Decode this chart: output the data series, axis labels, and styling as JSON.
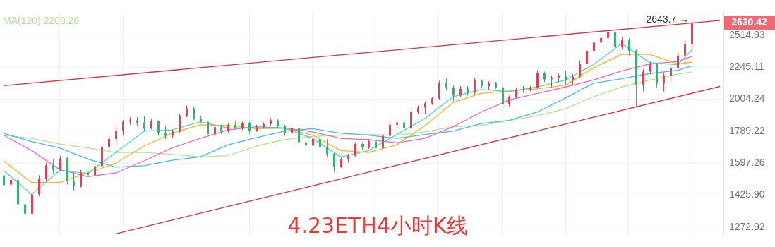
{
  "chart_data": {
    "type": "candlestick",
    "title": "4.23ETH4小时K线",
    "categories": [
      null,
      null,
      null,
      null,
      null,
      null,
      null,
      null,
      null,
      null,
      null,
      null,
      null,
      null,
      null,
      null,
      null,
      null,
      null,
      null,
      null,
      null,
      null,
      null,
      null,
      null,
      null,
      null,
      null,
      null,
      null,
      null,
      null,
      null,
      null,
      null,
      null,
      null,
      null,
      null,
      null,
      null,
      null,
      null,
      null,
      null,
      null,
      null,
      null,
      null,
      null,
      null,
      null,
      null,
      null,
      null,
      null,
      null,
      null,
      null,
      null,
      null,
      null,
      null,
      null,
      null,
      null,
      null,
      null,
      null,
      null,
      null,
      null,
      null,
      null,
      null,
      null,
      null,
      null,
      null,
      null,
      null,
      null,
      null,
      null,
      null,
      null,
      null,
      null,
      null,
      null,
      null,
      null,
      null,
      null,
      null,
      null,
      null,
      null,
      null,
      null,
      null,
      null
    ],
    "ohlc": [
      [
        1529,
        1547,
        1444,
        1477
      ],
      [
        1480,
        1515,
        1445,
        1505
      ],
      [
        1505,
        1510,
        1350,
        1380
      ],
      [
        1380,
        1395,
        1297,
        1335
      ],
      [
        1335,
        1440,
        1330,
        1430
      ],
      [
        1430,
        1530,
        1420,
        1510
      ],
      [
        1510,
        1600,
        1500,
        1585
      ],
      [
        1585,
        1620,
        1540,
        1560
      ],
      [
        1560,
        1640,
        1555,
        1625
      ],
      [
        1625,
        1630,
        1480,
        1500
      ],
      [
        1500,
        1545,
        1450,
        1470
      ],
      [
        1470,
        1560,
        1465,
        1545
      ],
      [
        1545,
        1580,
        1520,
        1530
      ],
      [
        1530,
        1590,
        1525,
        1580
      ],
      [
        1580,
        1700,
        1575,
        1690
      ],
      [
        1690,
        1760,
        1660,
        1740
      ],
      [
        1740,
        1820,
        1700,
        1790
      ],
      [
        1790,
        1860,
        1760,
        1850
      ],
      [
        1850,
        1880,
        1830,
        1860
      ],
      [
        1860,
        1880,
        1820,
        1840
      ],
      [
        1845,
        1885,
        1790,
        1805
      ],
      [
        1805,
        1870,
        1800,
        1855
      ],
      [
        1855,
        1860,
        1760,
        1780
      ],
      [
        1780,
        1820,
        1740,
        1760
      ],
      [
        1760,
        1800,
        1745,
        1790
      ],
      [
        1790,
        1900,
        1780,
        1890
      ],
      [
        1890,
        1960,
        1880,
        1940
      ],
      [
        1940,
        1950,
        1860,
        1870
      ],
      [
        1870,
        1890,
        1840,
        1850
      ],
      [
        1850,
        1860,
        1750,
        1770
      ],
      [
        1770,
        1830,
        1760,
        1815
      ],
      [
        1815,
        1830,
        1770,
        1790
      ],
      [
        1790,
        1840,
        1780,
        1830
      ],
      [
        1830,
        1855,
        1800,
        1810
      ],
      [
        1810,
        1850,
        1795,
        1840
      ],
      [
        1840,
        1850,
        1770,
        1790
      ],
      [
        1790,
        1830,
        1785,
        1815
      ],
      [
        1815,
        1845,
        1810,
        1835
      ],
      [
        1835,
        1875,
        1825,
        1860
      ],
      [
        1860,
        1870,
        1810,
        1820
      ],
      [
        1820,
        1830,
        1760,
        1780
      ],
      [
        1780,
        1820,
        1770,
        1810
      ],
      [
        1810,
        1830,
        1700,
        1720
      ],
      [
        1720,
        1760,
        1680,
        1700
      ],
      [
        1700,
        1750,
        1690,
        1740
      ],
      [
        1740,
        1760,
        1680,
        1690
      ],
      [
        1690,
        1740,
        1630,
        1650
      ],
      [
        1650,
        1655,
        1545,
        1575
      ],
      [
        1575,
        1630,
        1570,
        1620
      ],
      [
        1620,
        1650,
        1600,
        1640
      ],
      [
        1640,
        1720,
        1635,
        1710
      ],
      [
        1710,
        1720,
        1670,
        1690
      ],
      [
        1690,
        1740,
        1680,
        1725
      ],
      [
        1725,
        1730,
        1670,
        1685
      ],
      [
        1685,
        1770,
        1680,
        1760
      ],
      [
        1760,
        1850,
        1750,
        1830
      ],
      [
        1830,
        1860,
        1810,
        1845
      ],
      [
        1845,
        1870,
        1790,
        1810
      ],
      [
        1810,
        1930,
        1800,
        1915
      ],
      [
        1915,
        1960,
        1900,
        1945
      ],
      [
        1945,
        1990,
        1900,
        1975
      ],
      [
        1975,
        2020,
        1965,
        2010
      ],
      [
        2010,
        2140,
        2000,
        2120
      ],
      [
        2120,
        2160,
        2070,
        2090
      ],
      [
        2090,
        2110,
        1990,
        2030
      ],
      [
        2030,
        2100,
        2020,
        2080
      ],
      [
        2080,
        2100,
        2030,
        2050
      ],
      [
        2050,
        2160,
        2040,
        2140
      ],
      [
        2140,
        2150,
        2085,
        2100
      ],
      [
        2100,
        2135,
        2070,
        2120
      ],
      [
        2120,
        2130,
        2080,
        2090
      ],
      [
        2090,
        2095,
        1940,
        1970
      ],
      [
        1970,
        2030,
        1950,
        2020
      ],
      [
        2020,
        2090,
        2010,
        2070
      ],
      [
        2070,
        2100,
        2050,
        2075
      ],
      [
        2075,
        2100,
        2060,
        2090
      ],
      [
        2090,
        2220,
        2080,
        2200
      ],
      [
        2200,
        2210,
        2130,
        2150
      ],
      [
        2150,
        2180,
        2090,
        2160
      ],
      [
        2160,
        2195,
        2130,
        2180
      ],
      [
        2180,
        2220,
        2110,
        2140
      ],
      [
        2140,
        2190,
        2110,
        2170
      ],
      [
        2170,
        2300,
        2160,
        2270
      ],
      [
        2270,
        2400,
        2250,
        2380
      ],
      [
        2380,
        2470,
        2340,
        2450
      ],
      [
        2450,
        2500,
        2420,
        2490
      ],
      [
        2490,
        2560,
        2470,
        2540
      ],
      [
        2540,
        2545,
        2330,
        2410
      ],
      [
        2410,
        2500,
        2390,
        2470
      ],
      [
        2470,
        2490,
        2340,
        2380
      ],
      [
        2380,
        2390,
        1946,
        2110
      ],
      [
        2110,
        2230,
        2060,
        2210
      ],
      [
        2210,
        2290,
        2190,
        2270
      ],
      [
        2270,
        2280,
        2090,
        2120
      ],
      [
        2120,
        2200,
        2060,
        2180
      ],
      [
        2180,
        2260,
        2130,
        2240
      ],
      [
        2240,
        2370,
        2230,
        2340
      ],
      [
        2340,
        2470,
        2250,
        2440
      ],
      [
        2440,
        2643.7,
        2380,
        2630.42
      ],
      null,
      null,
      null,
      null
    ],
    "colors": [
      "#3aae74",
      "#e5404f",
      "#3aae74",
      "#3aae74",
      "#e5404f",
      "#e5404f",
      "#e5404f",
      "#3aae74",
      "#e5404f",
      "#3aae74",
      "#3aae74",
      "#e5404f",
      "#3aae74",
      "#e5404f",
      "#e5404f",
      "#e5404f",
      "#e5404f",
      "#e5404f",
      "#e5404f",
      "#3aae74",
      "#3aae74",
      "#e5404f",
      "#3aae74",
      "#3aae74",
      "#e5404f",
      "#e5404f",
      "#e5404f",
      "#3aae74",
      "#3aae74",
      "#3aae74",
      "#e5404f",
      "#3aae74",
      "#e5404f",
      "#3aae74",
      "#e5404f",
      "#3aae74",
      "#e5404f",
      "#e5404f",
      "#e5404f",
      "#3aae74",
      "#3aae74",
      "#e5404f",
      "#3aae74",
      "#3aae74",
      "#e5404f",
      "#3aae74",
      "#3aae74",
      "#3aae74",
      "#e5404f",
      "#e5404f",
      "#e5404f",
      "#3aae74",
      "#e5404f",
      "#3aae74",
      "#e5404f",
      "#e5404f",
      "#e5404f",
      "#3aae74",
      "#e5404f",
      "#e5404f",
      "#e5404f",
      "#e5404f",
      "#e5404f",
      "#3aae74",
      "#3aae74",
      "#e5404f",
      "#3aae74",
      "#e5404f",
      "#3aae74",
      "#e5404f",
      "#3aae74",
      "#3aae74",
      "#e5404f",
      "#e5404f",
      "#e5404f",
      "#e5404f",
      "#e5404f",
      "#3aae74",
      "#e5404f",
      "#e5404f",
      "#3aae74",
      "#e5404f",
      "#e5404f",
      "#e5404f",
      "#e5404f",
      "#e5404f",
      "#e5404f",
      "#3aae74",
      "#e5404f",
      "#3aae74",
      "#3aae74",
      "#e5404f",
      "#e5404f",
      "#3aae74",
      "#e5404f",
      "#e5404f",
      "#e5404f",
      "#e5404f",
      "#e5404f",
      null,
      null,
      null,
      null
    ],
    "series": [
      {
        "type": "line",
        "color": "#4fd6c0",
        "values": [
          1557,
          null,
          null,
          null,
          1430,
          null,
          null,
          null,
          1557,
          null,
          null,
          null,
          1540,
          null,
          null,
          null,
          1659,
          null,
          null,
          null,
          1789,
          null,
          null,
          null,
          1797,
          null,
          null,
          null,
          1850,
          null,
          null,
          null,
          1809,
          null,
          null,
          null,
          1809,
          null,
          null,
          null,
          1809,
          null,
          null,
          null,
          1744,
          null,
          null,
          null,
          1633,
          null,
          null,
          null,
          1670,
          null,
          null,
          null,
          1768,
          null,
          null,
          null,
          1872,
          null,
          null,
          null,
          2022,
          null,
          null,
          null,
          2074,
          null,
          null,
          null,
          2060,
          null,
          null,
          null,
          2093,
          null,
          null,
          null,
          2145,
          null,
          null,
          null,
          2266,
          null,
          null,
          null,
          2442,
          null,
          null,
          null,
          2281,
          null,
          null,
          null,
          2266,
          null,
          2387,
          null,
          null,
          null,
          null
        ]
      },
      {
        "type": "line",
        "color": "#ffb224",
        "values": [
          1610,
          null,
          null,
          null,
          1491,
          null,
          null,
          null,
          1491,
          null,
          null,
          null,
          1543,
          null,
          null,
          null,
          1597,
          null,
          null,
          null,
          1697,
          null,
          null,
          null,
          1776,
          null,
          null,
          null,
          1830,
          null,
          null,
          null,
          1825,
          null,
          null,
          null,
          1805,
          null,
          null,
          null,
          1809,
          null,
          null,
          null,
          1764,
          null,
          null,
          null,
          1670,
          null,
          null,
          null,
          1659,
          null,
          null,
          null,
          1705,
          null,
          null,
          null,
          1825,
          null,
          null,
          null,
          1981,
          null,
          null,
          null,
          2046,
          null,
          null,
          null,
          2064,
          null,
          null,
          null,
          2079,
          null,
          null,
          null,
          2107,
          null,
          null,
          null,
          2240,
          null,
          null,
          null,
          2349,
          null,
          null,
          null,
          2349,
          null,
          null,
          null,
          2271,
          null,
          2286,
          null,
          null,
          null,
          null
        ]
      },
      {
        "type": "line",
        "color": "#f065c2",
        "values": [
          1764,
          null,
          null,
          null,
          1670,
          null,
          null,
          null,
          1561,
          null,
          null,
          null,
          1522,
          null,
          null,
          null,
          1543,
          null,
          null,
          null,
          1610,
          null,
          null,
          null,
          1686,
          null,
          null,
          null,
          1744,
          null,
          null,
          null,
          1797,
          null,
          null,
          null,
          1817,
          null,
          null,
          null,
          1809,
          null,
          null,
          null,
          1785,
          null,
          null,
          null,
          1744,
          null,
          null,
          null,
          1736,
          null,
          null,
          null,
          1717,
          null,
          null,
          null,
          1744,
          null,
          null,
          null,
          1817,
          null,
          null,
          null,
          1915,
          null,
          null,
          null,
          1999,
          null,
          null,
          null,
          2046,
          null,
          null,
          null,
          2093,
          null,
          null,
          null,
          2145,
          null,
          null,
          null,
          2215,
          null,
          null,
          null,
          2271,
          null,
          null,
          null,
          2291,
          null,
          2333,
          null,
          null,
          null,
          null
        ]
      },
      {
        "type": "line",
        "color": "#4ab6ec",
        "values": [
          1776,
          null,
          null,
          null,
          1724,
          null,
          null,
          null,
          1686,
          null,
          null,
          null,
          1621,
          null,
          null,
          null,
          1575,
          null,
          null,
          null,
          1583,
          null,
          null,
          null,
          1614,
          null,
          null,
          null,
          1633,
          null,
          null,
          null,
          1705,
          null,
          null,
          null,
          1748,
          null,
          null,
          null,
          1789,
          null,
          null,
          null,
          1805,
          null,
          null,
          null,
          1776,
          null,
          null,
          null,
          1764,
          null,
          null,
          null,
          1744,
          null,
          null,
          null,
          1768,
          null,
          null,
          null,
          1789,
          null,
          null,
          null,
          1838,
          null,
          null,
          null,
          1859,
          null,
          null,
          null,
          1915,
          null,
          null,
          null,
          2013,
          null,
          null,
          null,
          2121,
          null,
          null,
          null,
          2155,
          null,
          null,
          null,
          2195,
          null,
          null,
          null,
          2220,
          null,
          2256,
          null,
          null,
          null,
          null
        ]
      },
      {
        "type": "line",
        "name": "MA(120):2208.28",
        "color": "#b5df98",
        "values": [
          1764,
          null,
          null,
          null,
          1744,
          null,
          null,
          null,
          1709,
          null,
          null,
          null,
          1686,
          null,
          null,
          null,
          1659,
          null,
          null,
          null,
          1659,
          null,
          null,
          null,
          1648,
          null,
          null,
          null,
          1633,
          null,
          null,
          null,
          1640,
          null,
          null,
          null,
          1697,
          null,
          null,
          null,
          1736,
          null,
          null,
          null,
          1756,
          null,
          null,
          null,
          1764,
          null,
          null,
          null,
          1768,
          null,
          null,
          null,
          1764,
          null,
          null,
          null,
          1785,
          null,
          null,
          null,
          1817,
          null,
          null,
          null,
          1825,
          null,
          null,
          null,
          1859,
          null,
          null,
          null,
          1889,
          null,
          null,
          null,
          1937,
          null,
          null,
          null,
          2022,
          null,
          null,
          null,
          2093,
          null,
          null,
          null,
          2145,
          null,
          null,
          null,
          2190,
          null,
          2208.28,
          null,
          null,
          null,
          null
        ]
      },
      {
        "type": "line",
        "color": "#d9303c",
        "values": [
          2103,
          null,
          null,
          null,
          null,
          null,
          null,
          null,
          null,
          null,
          null,
          null,
          null,
          null,
          null,
          null,
          null,
          null,
          null,
          null,
          null,
          null,
          null,
          null,
          null,
          null,
          null,
          null,
          null,
          null,
          null,
          null,
          null,
          null,
          null,
          null,
          null,
          null,
          null,
          null,
          null,
          null,
          null,
          null,
          null,
          null,
          null,
          null,
          null,
          null,
          null,
          null,
          null,
          null,
          null,
          null,
          null,
          null,
          null,
          null,
          null,
          null,
          null,
          null,
          null,
          null,
          null,
          null,
          null,
          null,
          null,
          null,
          null,
          null,
          null,
          null,
          null,
          null,
          null,
          null,
          null,
          null,
          null,
          null,
          null,
          null,
          null,
          null,
          null,
          null,
          null,
          null,
          null,
          null,
          null,
          null,
          null,
          null,
          null,
          null,
          null,
          null,
          2650
        ]
      },
      {
        "type": "line",
        "color": "#d9303c",
        "values": [
          null,
          null,
          null,
          null,
          null,
          null,
          null,
          null,
          null,
          null,
          null,
          null,
          null,
          null,
          null,
          null,
          1243,
          null,
          null,
          null,
          null,
          null,
          null,
          null,
          null,
          null,
          null,
          null,
          null,
          null,
          null,
          null,
          null,
          null,
          null,
          null,
          null,
          null,
          null,
          null,
          null,
          null,
          null,
          null,
          null,
          null,
          null,
          null,
          null,
          null,
          null,
          null,
          null,
          null,
          null,
          null,
          null,
          null,
          null,
          null,
          null,
          null,
          null,
          null,
          null,
          null,
          null,
          null,
          null,
          null,
          null,
          null,
          null,
          null,
          null,
          null,
          null,
          null,
          null,
          null,
          null,
          null,
          null,
          null,
          null,
          null,
          null,
          null,
          null,
          null,
          null,
          null,
          null,
          null,
          null,
          null,
          null,
          null,
          null,
          null,
          null,
          null,
          2097
        ]
      }
    ],
    "ylim": [
      1236,
      2735
    ],
    "yticks": [
      1272.92,
      {
        "value": 1425.9,
        "label": "1425.90"
      },
      1597.26,
      1789.22,
      2004.24,
      2245.11,
      2514.93
    ],
    "log": "y",
    "grid": true,
    "legend": "top left",
    "tick_labels": "y",
    "annotations": [
      "2643.7 →",
      "2630.42"
    ]
  }
}
